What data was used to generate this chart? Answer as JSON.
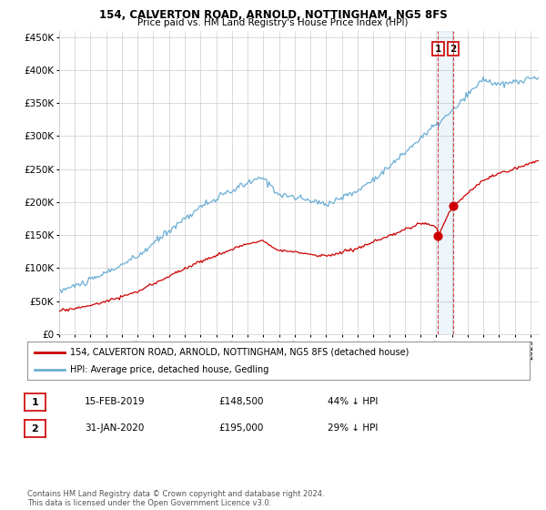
{
  "title": "154, CALVERTON ROAD, ARNOLD, NOTTINGHAM, NG5 8FS",
  "subtitle": "Price paid vs. HM Land Registry's House Price Index (HPI)",
  "ylim": [
    0,
    460000
  ],
  "yticks": [
    0,
    50000,
    100000,
    150000,
    200000,
    250000,
    300000,
    350000,
    400000,
    450000
  ],
  "ytick_labels": [
    "£0",
    "£50K",
    "£100K",
    "£150K",
    "£200K",
    "£250K",
    "£300K",
    "£350K",
    "£400K",
    "£450K"
  ],
  "hpi_color": "#6baed6",
  "price_color": "#cc0000",
  "vline_color": "#cc0000",
  "legend_label_red": "154, CALVERTON ROAD, ARNOLD, NOTTINGHAM, NG5 8FS (detached house)",
  "legend_label_blue": "HPI: Average price, detached house, Gedling",
  "annotation1_num": "1",
  "annotation2_num": "2",
  "annotation1_date": "15-FEB-2019",
  "annotation1_price": "£148,500",
  "annotation1_hpi": "44% ↓ HPI",
  "annotation2_date": "31-JAN-2020",
  "annotation2_price": "£195,000",
  "annotation2_hpi": "29% ↓ HPI",
  "footer": "Contains HM Land Registry data © Crown copyright and database right 2024.\nThis data is licensed under the Open Government Licence v3.0.",
  "background_color": "#ffffff",
  "grid_color": "#cccccc",
  "sale1_year": 2019.12,
  "sale1_price": 148500,
  "sale2_year": 2020.08,
  "sale2_price": 195000
}
